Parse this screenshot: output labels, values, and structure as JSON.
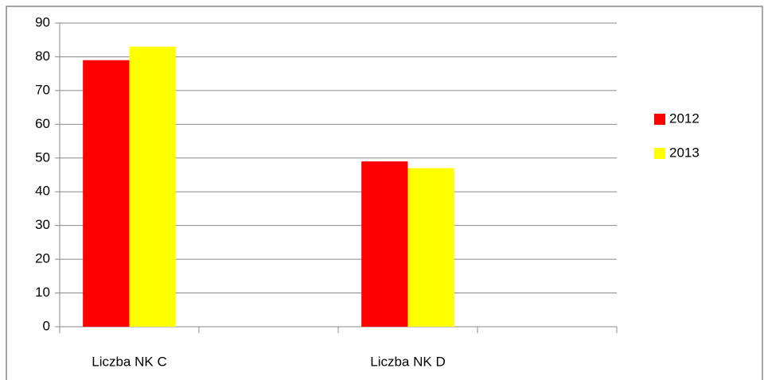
{
  "chart_data": {
    "type": "bar",
    "categories": [
      "Liczba NK C",
      null,
      "Liczba NK D",
      null
    ],
    "series": [
      {
        "name": "2012",
        "color": "#ff0000",
        "values": [
          79,
          null,
          49,
          null
        ]
      },
      {
        "name": "2013",
        "color": "#ffff00",
        "values": [
          83,
          null,
          47,
          null
        ]
      }
    ],
    "ylim": [
      0,
      90
    ],
    "yticks": [
      0,
      10,
      20,
      30,
      40,
      50,
      60,
      70,
      80,
      90
    ],
    "grid": true,
    "legend": "right"
  }
}
